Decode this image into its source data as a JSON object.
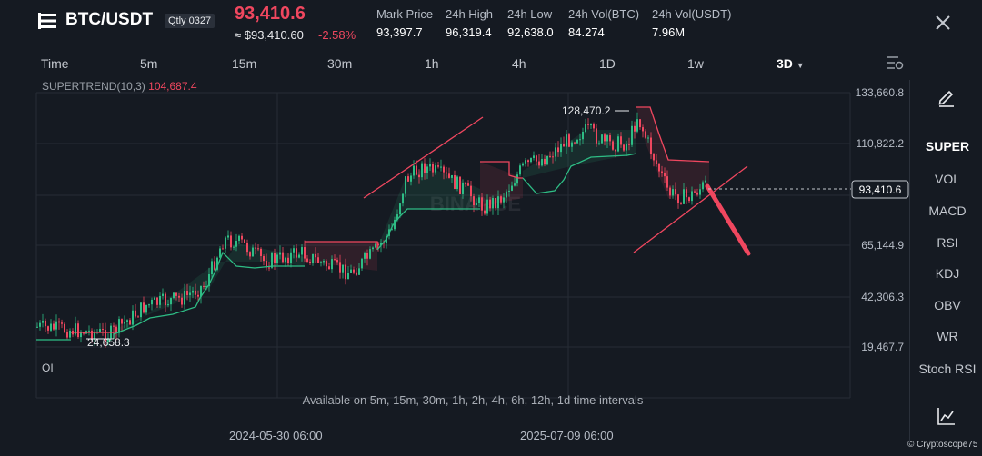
{
  "header": {
    "pair": "BTC/USDT",
    "contract_badge": "Qtly 0327",
    "last_price": "93,410.6",
    "last_price_usd": "≈ $93,410.60",
    "change_pct": "-2.58%",
    "stats": [
      {
        "label": "Mark Price",
        "value": "93,397.7"
      },
      {
        "label": "24h High",
        "value": "96,319.4"
      },
      {
        "label": "24h Low",
        "value": "92,638.0"
      },
      {
        "label": "24h Vol(BTC)",
        "value": "84.274"
      },
      {
        "label": "24h Vol(USDT)",
        "value": "7.96M"
      }
    ]
  },
  "timeframes": [
    "Time",
    "5m",
    "15m",
    "30m",
    "1h",
    "4h",
    "1D",
    "1w",
    "3D"
  ],
  "selected_timeframe": "3D",
  "indicator": {
    "name": "SUPERTREND(10,3)",
    "value": "104,687.4"
  },
  "price_axis": {
    "labels": [
      "133,660.8",
      "110,822.2",
      "65,144.9",
      "42,306.3",
      "19,467.7"
    ],
    "current": "93,410.6"
  },
  "annotations": {
    "high": "128,470.2",
    "low": "24,658.3"
  },
  "time_axis": [
    "2024-05-30 06:00",
    "2025-07-09 06:00"
  ],
  "sub_indicator": "OI",
  "availability_note": "Available on 5m, 15m, 30m, 1h, 2h, 4h, 6h, 12h, 1d time intervals",
  "watermark": "BINANCE",
  "watermark_by": "© Cryptoscope75",
  "sidebar": [
    "SUPER",
    "VOL",
    "MACD",
    "RSI",
    "KDJ",
    "OBV",
    "WR",
    "Stoch RSI"
  ],
  "colors": {
    "up": "#2ebd85",
    "down": "#f0475f",
    "background": "#151a22"
  },
  "icons": [
    "menu-icon",
    "close-icon",
    "chart-settings-icon",
    "pencil-icon",
    "chart-type-icon"
  ]
}
